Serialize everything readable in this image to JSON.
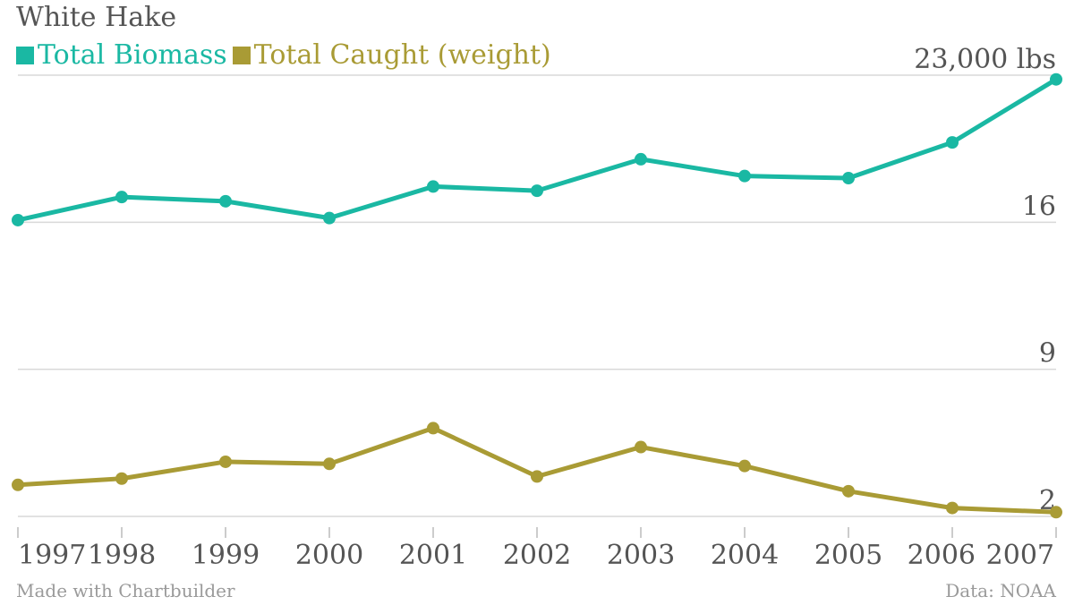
{
  "title": "White Hake",
  "footer": {
    "credit": "Made with Chartbuilder",
    "source": "Data: NOAA"
  },
  "colors": {
    "biomass": "#1ab8a3",
    "caught": "#a99b35",
    "text": "#555555",
    "grid": "#d9d9d9"
  },
  "chart_data": {
    "type": "line",
    "title": "White Hake",
    "x": [
      "1997",
      "1998",
      "1999",
      "2000",
      "2001",
      "2002",
      "2003",
      "2004",
      "2005",
      "2006",
      "2007"
    ],
    "y_ticks": [
      2,
      9,
      16,
      23
    ],
    "y_tick_labels": [
      "2",
      "9",
      "16",
      "23,000 lbs"
    ],
    "ylim": [
      2,
      23
    ],
    "grid": true,
    "legend_position": "top-left",
    "series": [
      {
        "name": "Total Biomass",
        "color": "#1ab8a3",
        "values": [
          16.1,
          17.2,
          17.0,
          16.2,
          17.7,
          17.5,
          19.0,
          18.2,
          18.1,
          19.8,
          22.8
        ]
      },
      {
        "name": "Total Caught (weight)",
        "color": "#a99b35",
        "values": [
          3.5,
          3.8,
          4.6,
          4.5,
          6.2,
          3.9,
          5.3,
          4.4,
          3.2,
          2.4,
          2.2
        ]
      }
    ]
  }
}
